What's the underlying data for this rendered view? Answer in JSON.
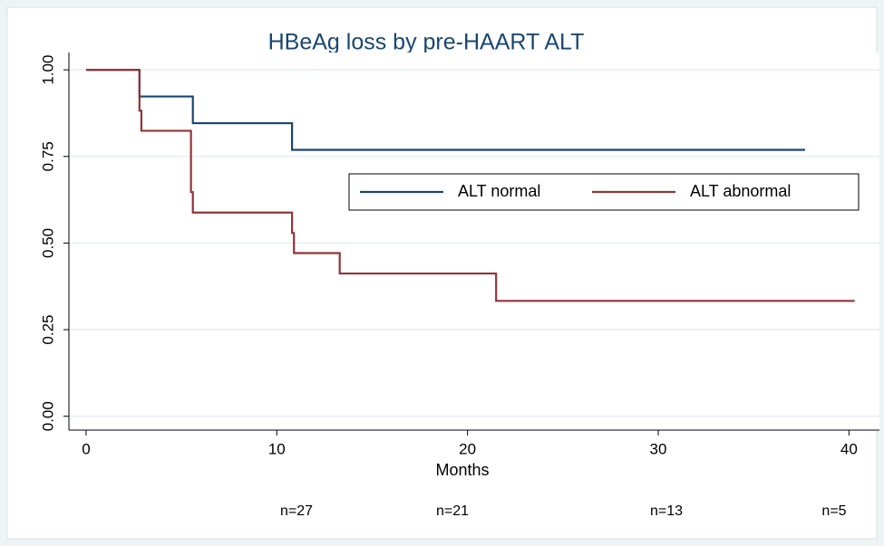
{
  "chart_data": {
    "type": "step",
    "title": "HBeAg loss by pre-HAART ALT",
    "x_label": "Months",
    "series": [
      {
        "name": "ALT normal",
        "color": "#1a476f",
        "x": [
          0,
          2.8,
          5.6,
          10.8,
          37.7
        ],
        "values": [
          1,
          0.923,
          0.846,
          0.769,
          0.769
        ]
      },
      {
        "name": "ALT abnormal",
        "color": "#90353b",
        "x": [
          0,
          2.8,
          2.9,
          5.5,
          5.6,
          10.8,
          10.9,
          13.3,
          21.5,
          40.3
        ],
        "values": [
          1,
          0.882,
          0.824,
          0.647,
          0.588,
          0.529,
          0.471,
          0.412,
          0.333,
          0.333
        ]
      }
    ],
    "xlim": [
      -0.9,
      41.6
    ],
    "ylim": [
      -0.04,
      1.05
    ],
    "xticks": [
      0,
      10,
      20,
      30,
      40
    ],
    "yticks": [
      {
        "value": 0,
        "label": "0.00"
      },
      {
        "value": 0.25,
        "label": "0.25"
      },
      {
        "value": 0.5,
        "label": "0.50"
      },
      {
        "value": 0.75,
        "label": "0.75"
      },
      {
        "value": 1,
        "label": "1.00"
      }
    ],
    "grid": true,
    "legend": "right",
    "annotations": [
      "n=27",
      "n=21",
      "n=13",
      "n=5"
    ]
  }
}
